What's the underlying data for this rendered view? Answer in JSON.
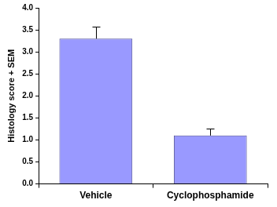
{
  "chart_data": {
    "type": "bar",
    "y_label": "Histology score + SEM",
    "categories": [
      "Vehicle",
      "Cyclophosphamide"
    ],
    "values": [
      3.3,
      1.1
    ],
    "errors": [
      0.27,
      0.15
    ],
    "color": "#9999ff",
    "ylim": [
      0,
      4
    ],
    "yticks": [
      {
        "value": 0,
        "label": "0.0"
      },
      0.5,
      {
        "value": 1,
        "label": "1.0"
      },
      1.5,
      {
        "value": 2,
        "label": "2.0"
      },
      2.5,
      {
        "value": 3,
        "label": "3.0"
      },
      3.5,
      {
        "value": 4,
        "label": "4.0"
      }
    ],
    "grid": false
  }
}
